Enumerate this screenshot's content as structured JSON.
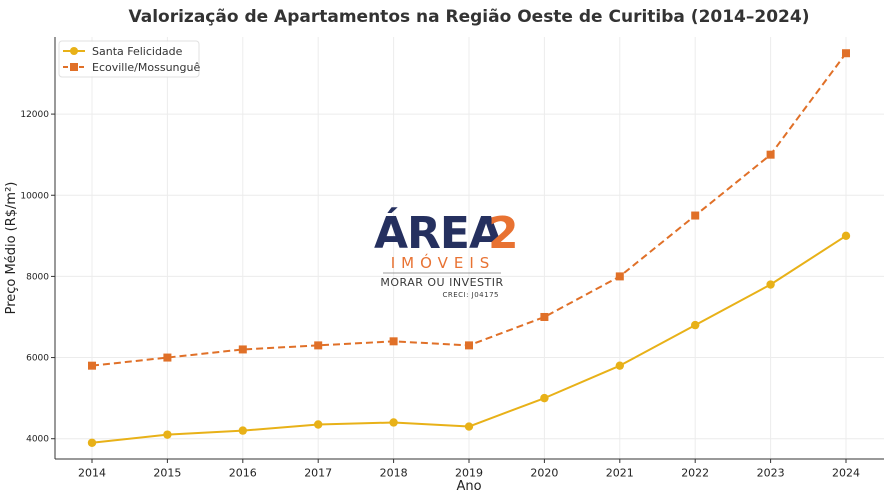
{
  "chart_data": {
    "type": "line",
    "title": "Valorização de Apartamentos na Região Oeste de Curitiba (2014–2024)",
    "xlabel": "Ano",
    "ylabel": "Preço Médio (R$/m²)",
    "categories": [
      "2014",
      "2015",
      "2016",
      "2017",
      "2018",
      "2019",
      "2020",
      "2021",
      "2022",
      "2023",
      "2024"
    ],
    "series": [
      {
        "name": "Santa Felicidade",
        "values": [
          3900,
          4100,
          4200,
          4350,
          4400,
          4300,
          5000,
          5800,
          6800,
          7800,
          9000
        ],
        "color": "#E8B118",
        "marker": "circle",
        "line_style": "solid"
      },
      {
        "name": "Ecoville/Mossunguê",
        "values": [
          5800,
          6000,
          6200,
          6300,
          6400,
          6300,
          7000,
          8000,
          9500,
          11000,
          13500
        ],
        "color": "#E07028",
        "marker": "square",
        "line_style": "dashed"
      }
    ],
    "ylim": [
      3500,
      13900
    ],
    "yticks": [
      "4000",
      "6000",
      "8000",
      "10000",
      "12000"
    ],
    "grid": true,
    "legend_position": "top-left"
  },
  "watermark": {
    "brand_main": "ÁREA",
    "brand_number": "2",
    "brand_sub": "IMÓVEIS",
    "slogan": "MORAR OU INVESTIR",
    "creci": "CRECI: J04175",
    "colors": {
      "navy": "#1E2A5A",
      "orange": "#E86E2C"
    }
  }
}
